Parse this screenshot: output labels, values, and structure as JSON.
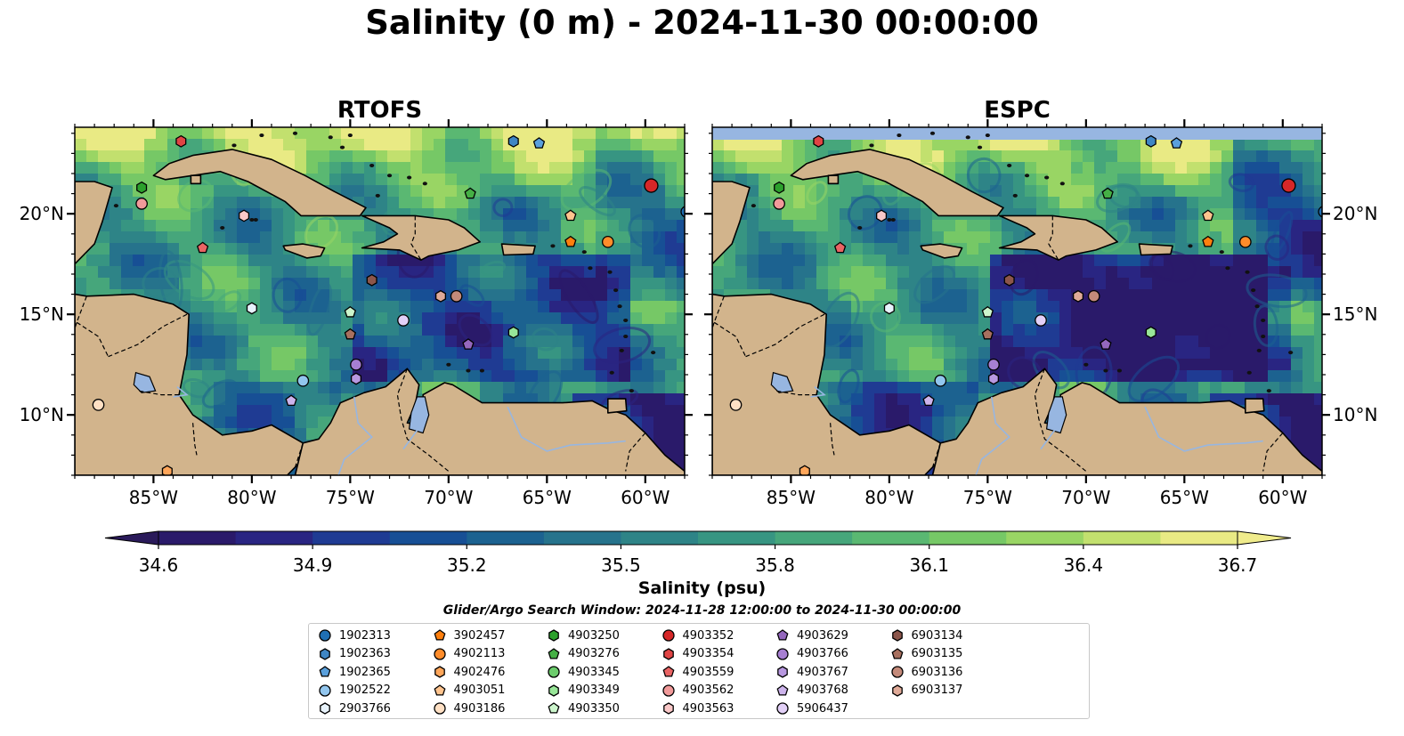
{
  "title": "Salinity (0 m) - 2024-11-30 00:00:00",
  "panels": [
    {
      "title": "RTOFS"
    },
    {
      "title": "ESPC"
    }
  ],
  "lat_ticks": [
    "20°N",
    "15°N",
    "10°N"
  ],
  "lon_ticks": [
    "85°W",
    "80°W",
    "75°W",
    "70°W",
    "65°W",
    "60°W"
  ],
  "colorbar": {
    "label": "Salinity (psu)",
    "tick_labels": [
      "34.6",
      "34.9",
      "35.2",
      "35.5",
      "35.8",
      "36.1",
      "36.4",
      "36.7"
    ],
    "min": 34.6,
    "max": 36.7,
    "extend": "both",
    "colormap": "haline",
    "colors": [
      "#2a1a6a",
      "#292582",
      "#1f3b93",
      "#174f95",
      "#1c6290",
      "#26738c",
      "#2e8487",
      "#379582",
      "#46a67b",
      "#5ab872",
      "#76c866",
      "#99d564",
      "#c2e06e",
      "#e9ea84"
    ]
  },
  "search_window": "Glider/Argo Search Window: 2024-11-28 12:00:00 to 2024-11-30 00:00:00",
  "land_color": "#d2b48c",
  "lake_color": "#97b6e1",
  "legend": [
    {
      "id": "1902313",
      "marker": "circle",
      "color": "#1f6fb4"
    },
    {
      "id": "1902363",
      "marker": "hexagon",
      "color": "#3f86c4"
    },
    {
      "id": "1902365",
      "marker": "pentagon",
      "color": "#5aa0dc"
    },
    {
      "id": "1902522",
      "marker": "circle",
      "color": "#92c6ee"
    },
    {
      "id": "2903766",
      "marker": "hexagon",
      "color": "#e8f3fc"
    },
    {
      "id": "3902457",
      "marker": "pentagon",
      "color": "#ff7f0e"
    },
    {
      "id": "4902113",
      "marker": "circle",
      "color": "#ff8c2a"
    },
    {
      "id": "4902476",
      "marker": "hexagon",
      "color": "#ffa65a"
    },
    {
      "id": "4903051",
      "marker": "pentagon",
      "color": "#ffc48e"
    },
    {
      "id": "4903186",
      "marker": "circle",
      "color": "#ffe0c4"
    },
    {
      "id": "4903250",
      "marker": "hexagon",
      "color": "#2ca02c"
    },
    {
      "id": "4903276",
      "marker": "pentagon",
      "color": "#45b045"
    },
    {
      "id": "4903345",
      "marker": "circle",
      "color": "#6ccc6c"
    },
    {
      "id": "4903349",
      "marker": "hexagon",
      "color": "#98e698"
    },
    {
      "id": "4903350",
      "marker": "pentagon",
      "color": "#ccf5cc"
    },
    {
      "id": "4903352",
      "marker": "circle",
      "color": "#d62728"
    },
    {
      "id": "4903354",
      "marker": "hexagon",
      "color": "#e04444"
    },
    {
      "id": "4903559",
      "marker": "pentagon",
      "color": "#ea6464"
    },
    {
      "id": "4903562",
      "marker": "circle",
      "color": "#f19a9a"
    },
    {
      "id": "4903563",
      "marker": "hexagon",
      "color": "#fac8c8"
    },
    {
      "id": "4903629",
      "marker": "pentagon",
      "color": "#9467bd"
    },
    {
      "id": "4903766",
      "marker": "circle",
      "color": "#a77fd2"
    },
    {
      "id": "4903767",
      "marker": "hexagon",
      "color": "#b898e0"
    },
    {
      "id": "4903768",
      "marker": "pentagon",
      "color": "#cdb4ec"
    },
    {
      "id": "5906437",
      "marker": "circle",
      "color": "#e2d0f7"
    },
    {
      "id": "6903134",
      "marker": "hexagon",
      "color": "#8c564b"
    },
    {
      "id": "6903135",
      "marker": "pentagon",
      "color": "#a8705f"
    },
    {
      "id": "6903136",
      "marker": "circle",
      "color": "#c48a7a"
    },
    {
      "id": "6903137",
      "marker": "hexagon",
      "color": "#e0aa98"
    }
  ],
  "floats": [
    {
      "id": "4903354",
      "lon": -83.6,
      "lat": 23.6
    },
    {
      "id": "1902363",
      "lon": -66.7,
      "lat": 23.6
    },
    {
      "id": "1902365",
      "lon": -65.4,
      "lat": 23.5
    },
    {
      "id": "4903250",
      "lon": -85.6,
      "lat": 21.3
    },
    {
      "id": "4903562",
      "lon": -85.6,
      "lat": 20.5
    },
    {
      "id": "4903276",
      "lon": -68.9,
      "lat": 21.0
    },
    {
      "id": "4903352",
      "lon": -59.7,
      "lat": 21.4
    },
    {
      "id": "1902313",
      "lon": -57.9,
      "lat": 20.1
    },
    {
      "id": "4903563",
      "lon": -80.4,
      "lat": 19.9
    },
    {
      "id": "4903051",
      "lon": -63.8,
      "lat": 19.9
    },
    {
      "id": "4903559",
      "lon": -82.5,
      "lat": 18.3
    },
    {
      "id": "3902457",
      "lon": -63.8,
      "lat": 18.6
    },
    {
      "id": "4902113",
      "lon": -61.9,
      "lat": 18.6
    },
    {
      "id": "6903134",
      "lon": -73.9,
      "lat": 16.7
    },
    {
      "id": "6903137",
      "lon": -70.4,
      "lat": 15.9
    },
    {
      "id": "6903136",
      "lon": -69.6,
      "lat": 15.9
    },
    {
      "id": "2903766",
      "lon": -80.0,
      "lat": 15.3
    },
    {
      "id": "4903350",
      "lon": -75.0,
      "lat": 15.1
    },
    {
      "id": "5906437",
      "lon": -72.3,
      "lat": 14.7
    },
    {
      "id": "6903135",
      "lon": -75.0,
      "lat": 14.0
    },
    {
      "id": "4903349",
      "lon": -66.7,
      "lat": 14.1
    },
    {
      "id": "4903629",
      "lon": -69.0,
      "lat": 13.5
    },
    {
      "id": "4903766",
      "lon": -74.7,
      "lat": 12.5
    },
    {
      "id": "4903767",
      "lon": -74.7,
      "lat": 11.8
    },
    {
      "id": "1902522",
      "lon": -77.4,
      "lat": 11.7
    },
    {
      "id": "4903768",
      "lon": -78.0,
      "lat": 10.7
    },
    {
      "id": "4903186",
      "lon": -87.8,
      "lat": 10.5
    },
    {
      "id": "4902476",
      "lon": -84.3,
      "lat": 7.2
    }
  ]
}
